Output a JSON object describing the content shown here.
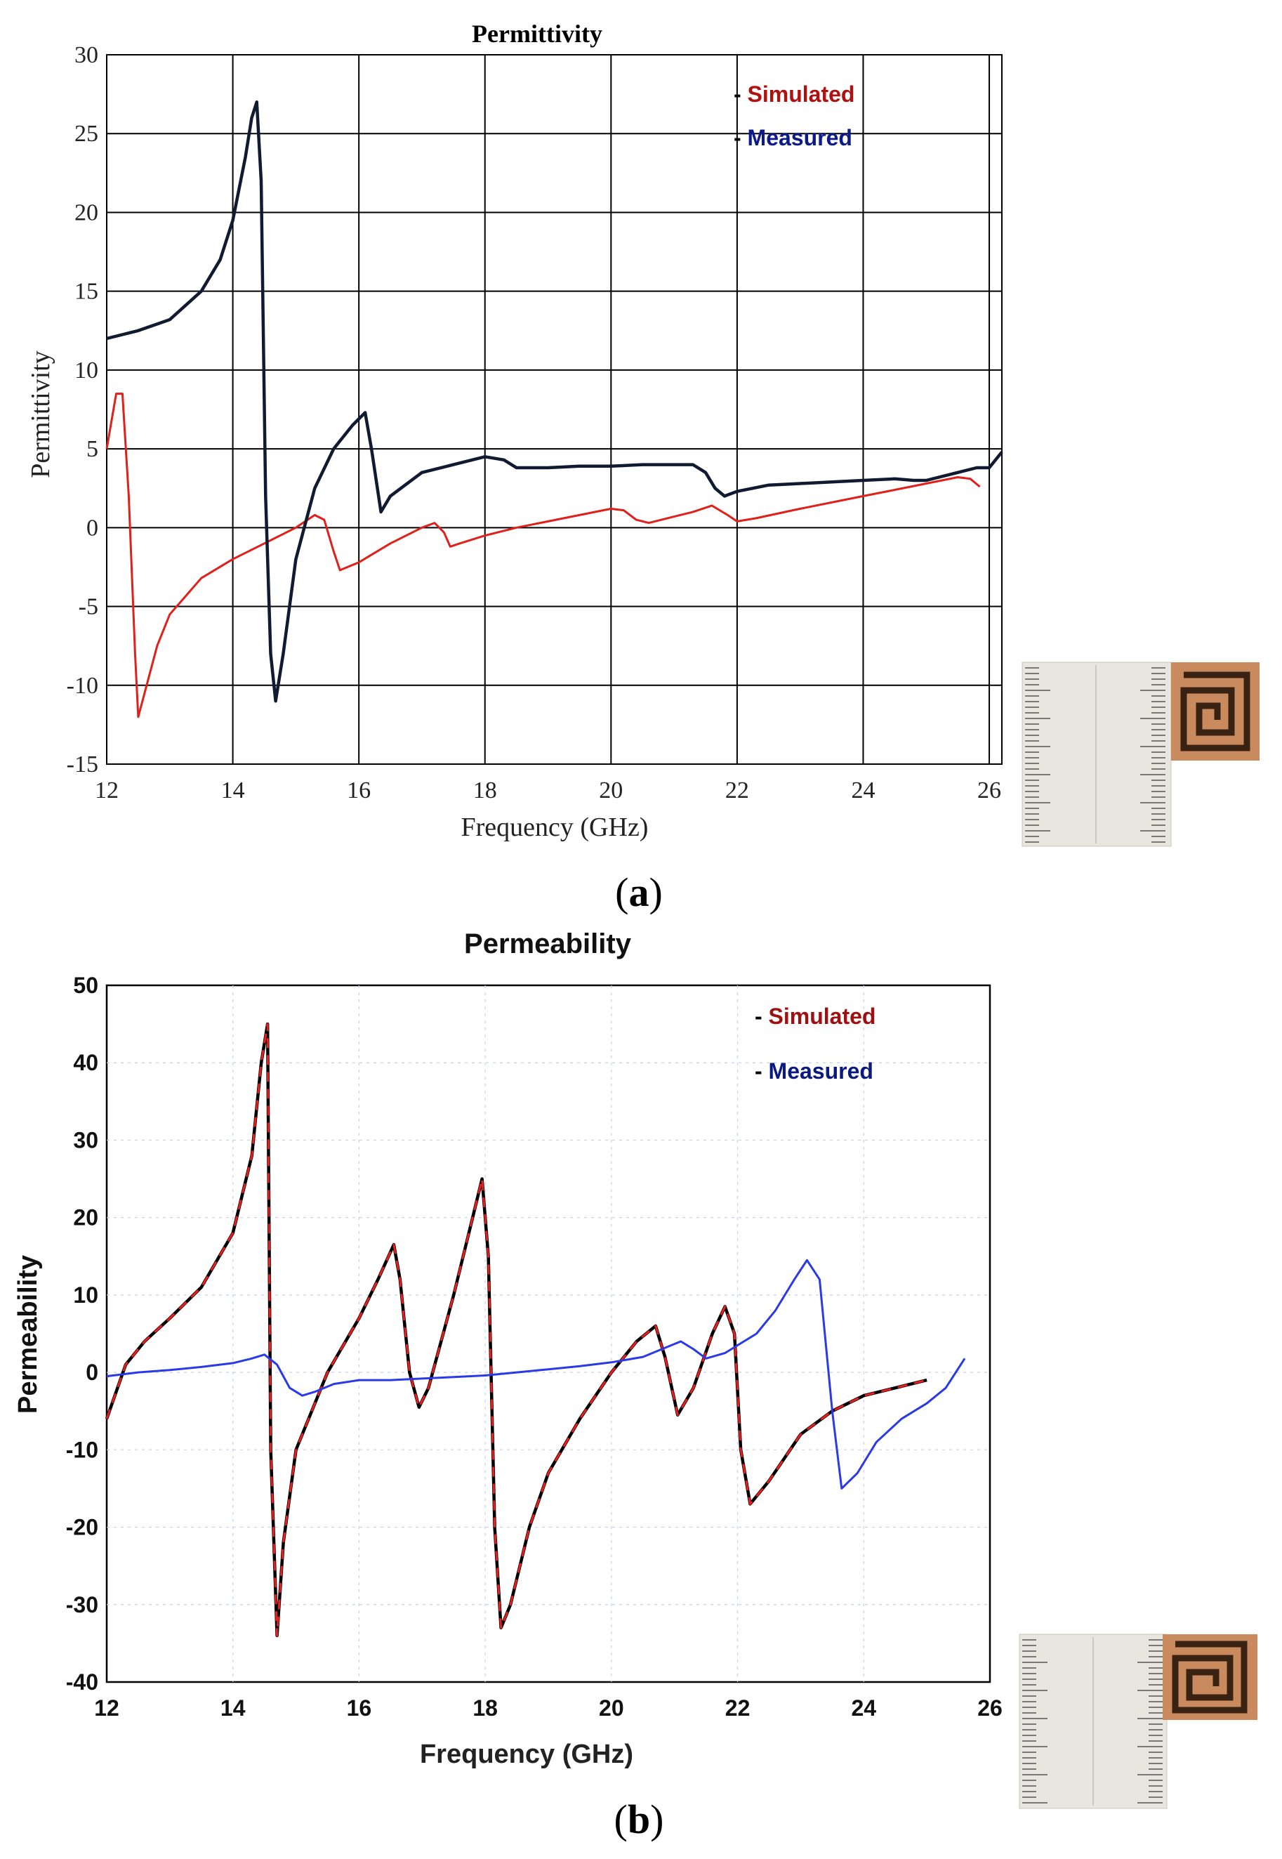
{
  "panels": [
    {
      "id": "a",
      "caption": "a",
      "chart_data": {
        "type": "line",
        "title": "Permittivity",
        "xlabel": "Frequency (GHz)",
        "ylabel": "Permittivity",
        "xlim": [
          12,
          26.2
        ],
        "ylim": [
          -15,
          30
        ],
        "xticks": [
          12,
          14,
          16,
          18,
          20,
          22,
          24,
          26
        ],
        "yticks": [
          -15,
          -10,
          -5,
          0,
          5,
          10,
          15,
          20,
          25,
          30
        ],
        "grid": true,
        "legend": {
          "placement": "top-right",
          "entries": [
            {
              "label": "Simulated",
              "color": "#b0100e"
            },
            {
              "label": "Measured",
              "color": "#0d1a8a"
            }
          ]
        },
        "series": [
          {
            "label": "Simulated",
            "color": "#e0201a",
            "x": [
              12.0,
              12.15,
              12.25,
              12.35,
              12.45,
              12.5,
              12.6,
              12.8,
              13.0,
              13.5,
              14.0,
              14.5,
              15.0,
              15.3,
              15.45,
              15.6,
              15.7,
              16.0,
              16.5,
              17.0,
              17.2,
              17.35,
              17.45,
              17.6,
              18.0,
              18.5,
              19.0,
              19.5,
              20.0,
              20.2,
              20.4,
              20.6,
              21.0,
              21.3,
              21.6,
              21.85,
              22.0,
              22.3,
              23.0,
              23.5,
              24.0,
              24.5,
              25.0,
              25.5,
              25.7,
              25.85
            ],
            "y": [
              5.0,
              8.5,
              8.5,
              2.0,
              -8.0,
              -12.0,
              -10.5,
              -7.5,
              -5.5,
              -3.2,
              -2.0,
              -1.0,
              0.0,
              0.8,
              0.5,
              -1.5,
              -2.7,
              -2.2,
              -1.0,
              0.0,
              0.3,
              -0.3,
              -1.2,
              -1.0,
              -0.5,
              0.0,
              0.4,
              0.8,
              1.2,
              1.1,
              0.5,
              0.3,
              0.7,
              1.0,
              1.4,
              0.8,
              0.4,
              0.6,
              1.2,
              1.6,
              2.0,
              2.4,
              2.8,
              3.2,
              3.1,
              2.6
            ]
          },
          {
            "label": "Measured",
            "color": "#101a30",
            "x": [
              12.0,
              12.5,
              13.0,
              13.5,
              13.8,
              14.0,
              14.2,
              14.3,
              14.38,
              14.45,
              14.52,
              14.6,
              14.68,
              14.8,
              15.0,
              15.3,
              15.6,
              15.9,
              16.1,
              16.2,
              16.35,
              16.5,
              17.0,
              17.5,
              18.0,
              18.3,
              18.5,
              19.0,
              19.5,
              20.0,
              20.5,
              21.0,
              21.3,
              21.5,
              21.65,
              21.8,
              22.0,
              22.5,
              23.0,
              23.5,
              24.0,
              24.5,
              24.8,
              25.0,
              25.5,
              25.8,
              26.0,
              26.2
            ],
            "y": [
              12.0,
              12.5,
              13.2,
              15.0,
              17.0,
              19.5,
              23.5,
              26.0,
              27.0,
              22.0,
              2.0,
              -8.0,
              -11.0,
              -8.0,
              -2.0,
              2.5,
              5.0,
              6.5,
              7.3,
              5.0,
              1.0,
              2.0,
              3.5,
              4.0,
              4.5,
              4.3,
              3.8,
              3.8,
              3.9,
              3.9,
              4.0,
              4.0,
              4.0,
              3.5,
              2.5,
              2.0,
              2.3,
              2.7,
              2.8,
              2.9,
              3.0,
              3.1,
              3.0,
              3.0,
              3.5,
              3.8,
              3.8,
              4.8
            ]
          }
        ]
      }
    },
    {
      "id": "b",
      "caption": "b",
      "chart_data": {
        "type": "line",
        "title": "Permeability",
        "xlabel": "Frequency (GHz)",
        "ylabel": "Permeability",
        "xlim": [
          12,
          26
        ],
        "ylim": [
          -40,
          50
        ],
        "xticks": [
          12,
          14,
          16,
          18,
          20,
          22,
          24,
          26
        ],
        "yticks": [
          -40,
          -30,
          -20,
          -10,
          0,
          10,
          20,
          30,
          40,
          50
        ],
        "grid": true,
        "legend": {
          "placement": "top-right",
          "entries": [
            {
              "label": "Simulated",
              "color": "#a01010"
            },
            {
              "label": "Measured",
              "color": "#0a1a80"
            }
          ]
        },
        "series": [
          {
            "label": "Simulated",
            "color": "#e62020",
            "dashed": true,
            "x": [
              12.0,
              12.3,
              12.6,
              13.0,
              13.5,
              14.0,
              14.3,
              14.45,
              14.55,
              14.6,
              14.7,
              14.8,
              15.0,
              15.5,
              16.0,
              16.3,
              16.55,
              16.65,
              16.8,
              16.95,
              17.1,
              17.5,
              17.8,
              17.95,
              18.05,
              18.15,
              18.25,
              18.4,
              18.7,
              19.0,
              19.5,
              20.0,
              20.4,
              20.7,
              20.85,
              21.05,
              21.3,
              21.6,
              21.8,
              21.95,
              22.05,
              22.2,
              22.5,
              23.0,
              23.5,
              24.0,
              24.5,
              25.0
            ],
            "y": [
              -6.0,
              1.0,
              4.0,
              7.0,
              11.0,
              18.0,
              28.0,
              40.0,
              45.0,
              -10.0,
              -34.0,
              -22.0,
              -10.0,
              0.0,
              7.0,
              12.0,
              16.5,
              12.0,
              0.0,
              -4.5,
              -2.0,
              10.0,
              20.0,
              25.0,
              15.0,
              -20.0,
              -33.0,
              -30.0,
              -20.0,
              -13.0,
              -6.0,
              0.0,
              4.0,
              6.0,
              2.0,
              -5.5,
              -2.0,
              5.0,
              8.5,
              5.0,
              -10.0,
              -17.0,
              -14.0,
              -8.0,
              -5.0,
              -3.0,
              -2.0,
              -1.0
            ]
          },
          {
            "label": "Measured",
            "color": "#2a3ae8",
            "x": [
              12.0,
              12.5,
              13.0,
              13.5,
              14.0,
              14.3,
              14.5,
              14.7,
              14.9,
              15.1,
              15.3,
              15.6,
              16.0,
              16.5,
              17.0,
              17.5,
              18.0,
              18.5,
              19.0,
              19.5,
              20.0,
              20.5,
              20.8,
              21.1,
              21.3,
              21.5,
              21.8,
              22.0,
              22.3,
              22.6,
              22.9,
              23.1,
              23.3,
              23.5,
              23.65,
              23.9,
              24.2,
              24.6,
              25.0,
              25.3,
              25.6
            ],
            "y": [
              -0.5,
              0.0,
              0.3,
              0.7,
              1.2,
              1.8,
              2.3,
              1.0,
              -2.0,
              -3.0,
              -2.5,
              -1.5,
              -1.0,
              -1.0,
              -0.8,
              -0.6,
              -0.4,
              0.0,
              0.4,
              0.8,
              1.3,
              2.0,
              3.0,
              4.0,
              3.0,
              1.8,
              2.5,
              3.5,
              5.0,
              8.0,
              12.0,
              14.5,
              12.0,
              -5.0,
              -15.0,
              -13.0,
              -9.0,
              -6.0,
              -4.0,
              -2.0,
              1.8
            ]
          }
        ]
      }
    }
  ]
}
